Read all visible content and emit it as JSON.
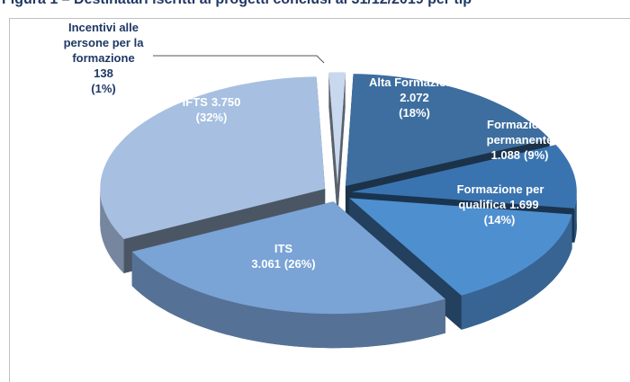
{
  "chart_data": {
    "type": "pie3d",
    "title": "Figura 1 – Destinatari iscritti ai progetti conclusi al 31/12/2019 per tip",
    "categories": [
      "Alta Formazione",
      "Formazione permanente",
      "Formazione per qualifica",
      "ITS",
      "IFTS",
      "Incentivi alle persone per la formazione"
    ],
    "values": [
      2072,
      1088,
      1699,
      3061,
      3750,
      138
    ],
    "value_labels": [
      "2.072",
      "1.088",
      "1.699",
      "3.061",
      "3.750",
      "138"
    ],
    "percentages": [
      18,
      9,
      14,
      26,
      32,
      1
    ],
    "percentage_labels": [
      "(18%)",
      "(9%)",
      "(14%)",
      "(26%)",
      "(32%)",
      "(1%)"
    ],
    "colors": [
      "#3d6e9f",
      "#3a74b0",
      "#4e8fd0",
      "#7aa3d6",
      "#a7c0e1",
      "#c8d8ee"
    ]
  }
}
